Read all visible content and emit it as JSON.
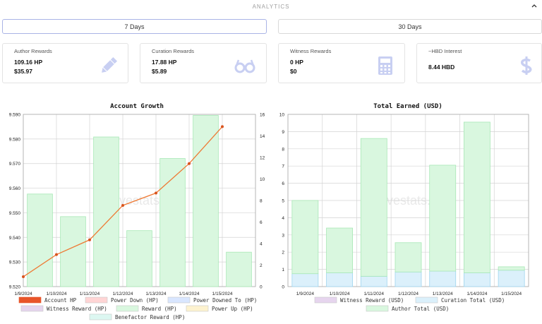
{
  "header": {
    "title": "ANALYTICS"
  },
  "tabs": [
    {
      "label": "7 Days",
      "active": true
    },
    {
      "label": "30 Days",
      "active": false
    }
  ],
  "cards": [
    {
      "title": "Author Rewards",
      "line1": "109.16 HP",
      "line2": "$35.97",
      "icon": "pencil-icon"
    },
    {
      "title": "Curation Rewards",
      "line1": "17.88 HP",
      "line2": "$5.89",
      "icon": "glasses-icon"
    },
    {
      "title": "Witness Rewards",
      "line1": "0 HP",
      "line2": "$0",
      "icon": "calculator-icon"
    },
    {
      "title": "~HBD Interest",
      "line1": "8.44 HBD",
      "line2": "",
      "icon": "dollar-icon"
    }
  ],
  "colors": {
    "accent": "#c7d0f0",
    "icon": "#c8cff2",
    "line": "#ee7a35",
    "point": "#d9531e",
    "rewardFill": "#d9f7df",
    "rewardStroke": "#a8e8b6",
    "curationFill": "#dbf0fb",
    "curationStroke": "#9fd4ee"
  },
  "watermark": "hivestats.io",
  "chart_data": [
    {
      "type": "bar+line",
      "title": "Account Growth",
      "categories": [
        "1/9/2024",
        "1/10/2024",
        "1/11/2024",
        "1/12/2024",
        "1/13/2024",
        "1/14/2024",
        "1/15/2024"
      ],
      "ylim_left": [
        9.52,
        9.59
      ],
      "ylim_right": [
        0,
        16
      ],
      "yticks_left": [
        "9.520",
        "9.530",
        "9.540",
        "9.550",
        "9.560",
        "9.570",
        "9.580",
        "9.590"
      ],
      "yticks_right": [
        "0",
        "2",
        "4",
        "6",
        "8",
        "10",
        "12",
        "14",
        "16"
      ],
      "series": [
        {
          "name": "Account HP",
          "type": "line",
          "axis": "left",
          "values": [
            9.524,
            9.533,
            9.539,
            9.553,
            9.558,
            9.57,
            9.585
          ]
        },
        {
          "name": "Reward (HP)",
          "type": "bar",
          "axis": "right",
          "values": [
            8.6,
            6.5,
            13.9,
            5.2,
            11.9,
            15.9,
            3.2
          ]
        }
      ],
      "legend": [
        "Account HP",
        "Power Down (HP)",
        "Power Downed To (HP)",
        "Witness Reward (HP)",
        "Reward (HP)",
        "Power Up (HP)",
        "Benefactor Reward (HP)"
      ],
      "legend_colors": [
        "#e8552a",
        "#ffd5d5",
        "#d9e6ff",
        "#e6d5ee",
        "#d9f7df",
        "#fdf2cf",
        "#dcf7f1"
      ]
    },
    {
      "type": "stacked-bar",
      "title": "Total Earned (USD)",
      "categories": [
        "1/9/2024",
        "1/10/2024",
        "1/11/2024",
        "1/12/2024",
        "1/13/2024",
        "1/14/2024",
        "1/15/2024"
      ],
      "ylim": [
        0,
        10
      ],
      "yticks": [
        "0",
        "1",
        "2",
        "3",
        "4",
        "5",
        "6",
        "7",
        "8",
        "9",
        "10"
      ],
      "series": [
        {
          "name": "Witness Reward (USD)",
          "values": [
            0,
            0,
            0,
            0,
            0,
            0,
            0
          ]
        },
        {
          "name": "Curation Total (USD)",
          "values": [
            0.75,
            0.8,
            0.6,
            0.85,
            0.9,
            0.8,
            0.95
          ]
        },
        {
          "name": "Author Total (USD)",
          "values": [
            4.25,
            2.6,
            8.0,
            1.7,
            6.15,
            8.75,
            0.2
          ]
        }
      ],
      "legend": [
        "Witness Reward (USD)",
        "Curation Total (USD)",
        "Author Total (USD)"
      ],
      "legend_colors": [
        "#e6d5ee",
        "#dbf0fb",
        "#d9f7df"
      ]
    }
  ]
}
